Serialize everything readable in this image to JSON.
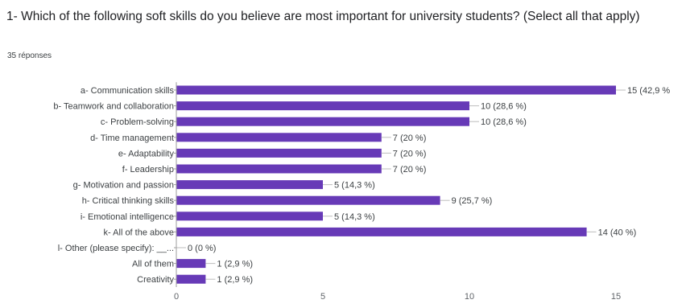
{
  "question": {
    "title": "1- Which of the following soft skills do you believe are most important for university students? (Select all that apply)",
    "responses": "35 réponses"
  },
  "colors": {
    "bar": "#673ab7",
    "axis": "#9e9e9e",
    "leader": "#bdbdbd"
  },
  "chart_data": {
    "type": "bar",
    "orientation": "horizontal",
    "categories": [
      "a- Communication skills",
      "b- Teamwork and collaboration",
      "c- Problem-solving",
      "d- Time management",
      "e- Adaptability",
      "f- Leadership",
      "g- Motivation and passion",
      "h- Critical thinking skills",
      "i- Emotional intelligence",
      "k- All of the above",
      "l- Other (please specify): __...",
      "All of them",
      "Creativity"
    ],
    "values": [
      15,
      10,
      10,
      7,
      7,
      7,
      5,
      9,
      5,
      14,
      0,
      1,
      1
    ],
    "labels": [
      "15 (42,9 %",
      "10 (28,6 %)",
      "10 (28,6 %)",
      "7 (20 %)",
      "7 (20 %)",
      "7 (20 %)",
      "5 (14,3 %)",
      "9 (25,7 %)",
      "5 (14,3 %)",
      "14 (40 %)",
      "0 (0 %)",
      "1 (2,9 %)",
      "1 (2,9 %)"
    ],
    "xticks": [
      "0",
      "5",
      "10",
      "15"
    ],
    "xlim": [
      0,
      15
    ],
    "grid": false
  }
}
